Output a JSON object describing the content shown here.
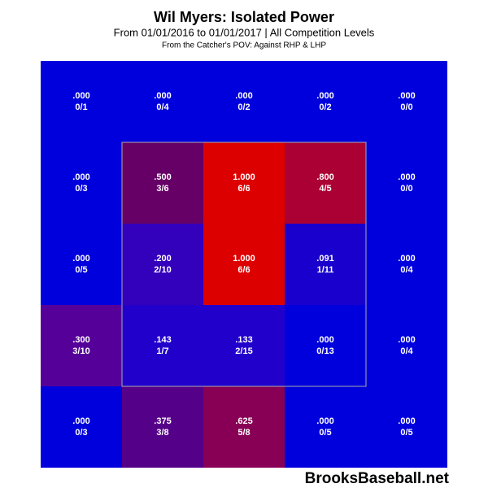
{
  "chart_data": {
    "type": "heatmap",
    "title": "Wil Myers: Isolated Power",
    "subtitle": "From 01/01/2016 to 01/01/2017 | All Competition Levels",
    "note": "From the Catcher's POV:  Against RHP & LHP",
    "watermark": "BrooksBaseball.net",
    "values": [
      [
        0,
        0,
        0,
        0,
        0
      ],
      [
        0,
        0.5,
        1,
        0.8,
        0
      ],
      [
        0,
        0.2,
        1,
        0.091,
        0
      ],
      [
        0.3,
        0.143,
        0.133,
        0,
        0
      ],
      [
        0,
        0.375,
        0.625,
        0,
        0
      ]
    ],
    "value_labels": [
      [
        ".000",
        ".000",
        ".000",
        ".000",
        ".000"
      ],
      [
        ".000",
        ".500",
        "1.000",
        ".800",
        ".000"
      ],
      [
        ".000",
        ".200",
        "1.000",
        ".091",
        ".000"
      ],
      [
        ".300",
        ".143",
        ".133",
        ".000",
        ".000"
      ],
      [
        ".000",
        ".375",
        ".625",
        ".000",
        ".000"
      ]
    ],
    "counts": [
      [
        "0/1",
        "0/4",
        "0/2",
        "0/2",
        "0/0"
      ],
      [
        "0/3",
        "3/6",
        "6/6",
        "4/5",
        "0/0"
      ],
      [
        "0/5",
        "2/10",
        "6/6",
        "1/11",
        "0/4"
      ],
      [
        "3/10",
        "1/7",
        "2/15",
        "0/13",
        "0/4"
      ],
      [
        "0/3",
        "3/8",
        "5/8",
        "0/5",
        "0/5"
      ]
    ],
    "colors": [
      [
        "#0000dd",
        "#0000dd",
        "#0000dd",
        "#0000dd",
        "#0000dd"
      ],
      [
        "#0000dd",
        "#660066",
        "#dd0000",
        "#aa0033",
        "#0000dd"
      ],
      [
        "#0000dd",
        "#3300bb",
        "#dd0000",
        "#1a00cc",
        "#0000dd"
      ],
      [
        "#550099",
        "#2200cc",
        "#2200cc",
        "#0000dd",
        "#0000dd"
      ],
      [
        "#0000dd",
        "#550088",
        "#880055",
        "#0000dd",
        "#0000dd"
      ]
    ]
  }
}
